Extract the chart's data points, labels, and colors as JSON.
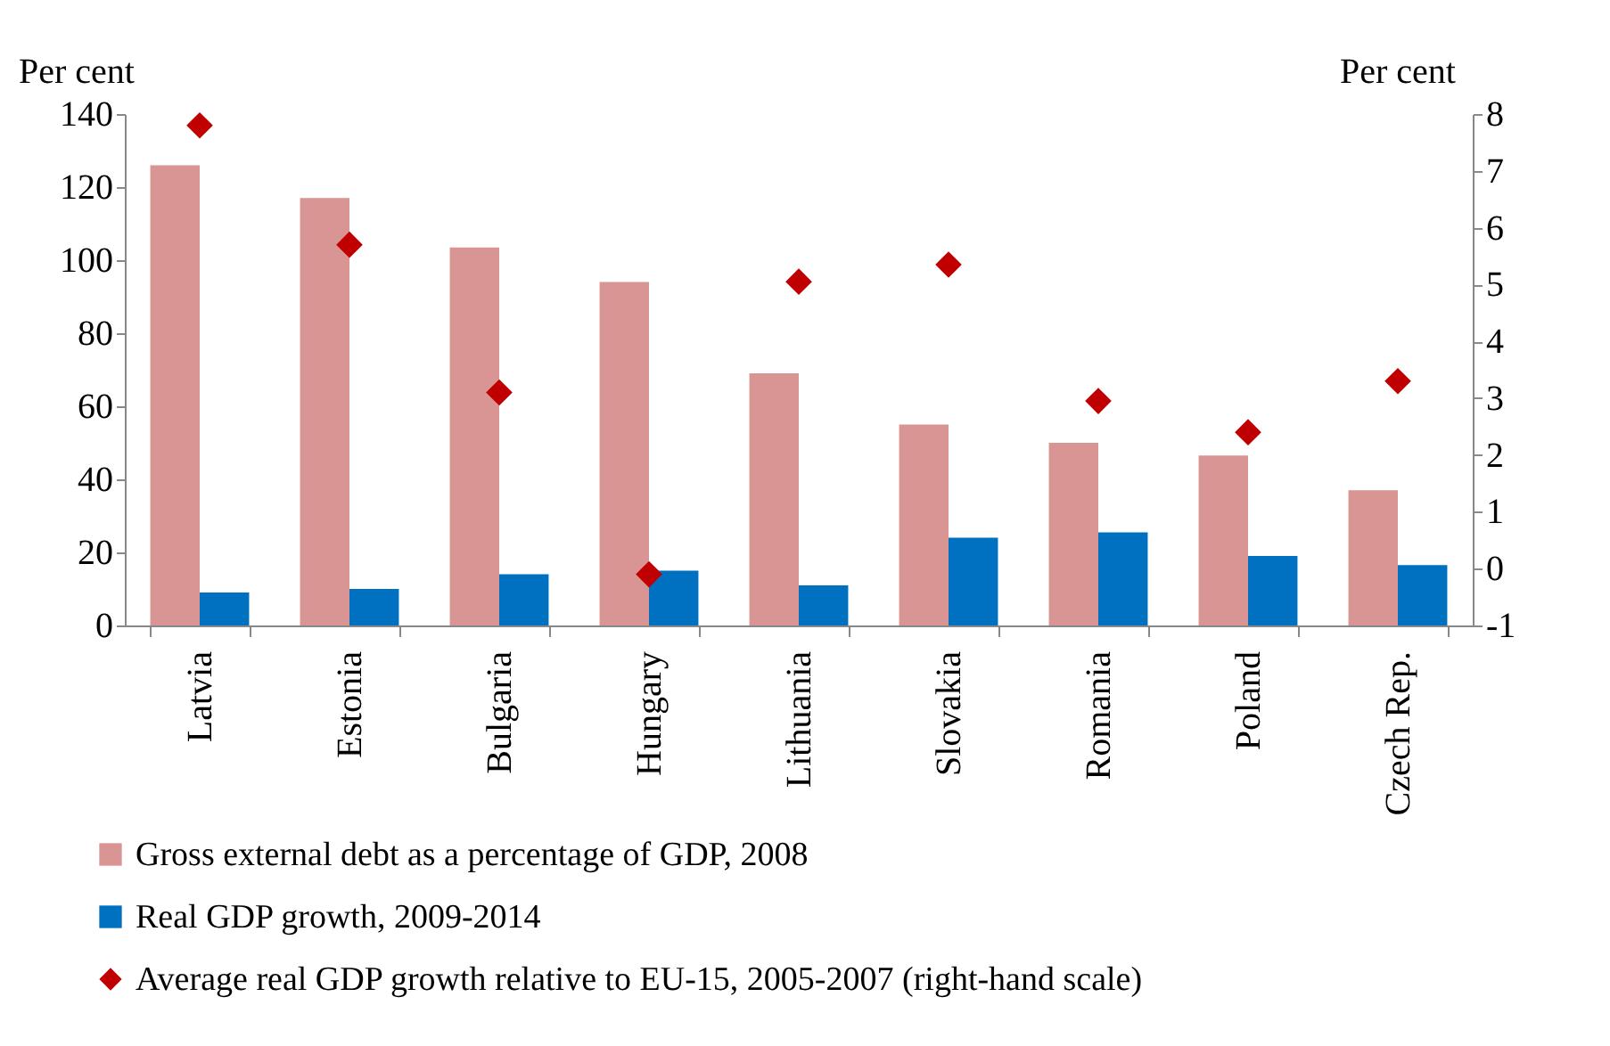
{
  "chart_data": {
    "type": "bar",
    "categories": [
      "Latvia",
      "Estonia",
      "Bulgaria",
      "Hungary",
      "Lithuania",
      "Slovakia",
      "Romania",
      "Poland",
      "Czech Rep."
    ],
    "series": [
      {
        "name": "Gross external debt as a percentage of  GDP, 2008",
        "color": "#d99594",
        "values": [
          126,
          117,
          103.5,
          94,
          69,
          55,
          50,
          46.5,
          37
        ]
      },
      {
        "name": "Real GDP growth, 2009-2014",
        "color": "#0070c0",
        "values": [
          9,
          10,
          14,
          15,
          11,
          24,
          25.5,
          19,
          16.5
        ]
      },
      {
        "name": "Average real GDP growth relative to EU-15, 2005-2007 (right-hand scale)",
        "type": "scatter",
        "axis": "y2",
        "color": "#c00000",
        "values": [
          7.8,
          5.7,
          3.1,
          -0.1,
          5.05,
          5.35,
          2.95,
          2.4,
          3.3
        ]
      }
    ],
    "ylabel": "Per cent",
    "y2label": "Per cent",
    "ylim": [
      0,
      140
    ],
    "yticks": [
      0,
      20,
      40,
      60,
      80,
      100,
      120,
      140
    ],
    "y2lim": [
      -1,
      8
    ],
    "y2ticks": [
      -1,
      0,
      1,
      2,
      3,
      4,
      5,
      6,
      7,
      8
    ],
    "marker": "diamond",
    "legend": "bottom"
  }
}
